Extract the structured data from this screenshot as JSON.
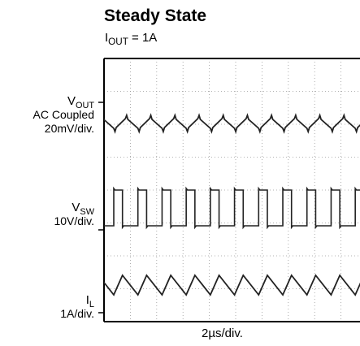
{
  "chart_data": {
    "type": "line",
    "title": "Steady State",
    "subtitle": {
      "prefix": "I",
      "sub": "OUT",
      "suffix": " = 1A"
    },
    "xlabel": "2µs/div.",
    "grid": true,
    "series": [
      {
        "name_main": "V",
        "name_sub": "OUT",
        "scale_lines": [
          "AC Coupled",
          "20mV/div."
        ],
        "shape": "ripple"
      },
      {
        "name_main": "V",
        "name_sub": "SW",
        "scale_lines": [
          "10V/div."
        ],
        "shape": "square"
      },
      {
        "name_main": "I",
        "name_sub": "L",
        "scale_lines": [
          "1A/div."
        ],
        "shape": "triangle"
      }
    ],
    "cycles_visible": 10.6
  }
}
